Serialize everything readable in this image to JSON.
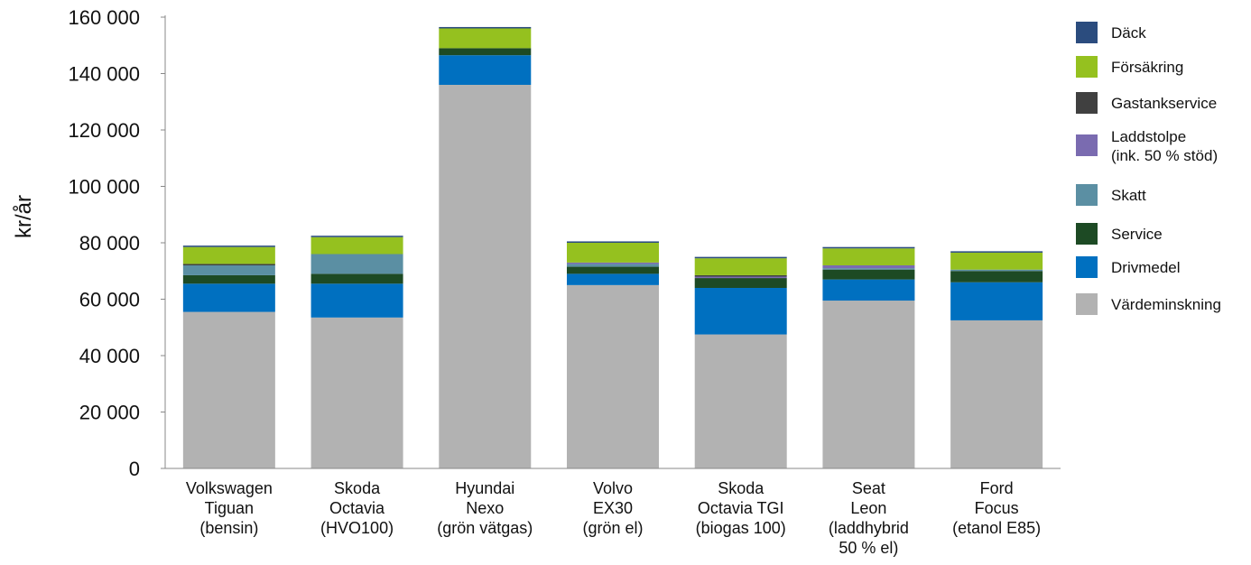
{
  "chart_data": {
    "type": "bar",
    "stacked": true,
    "title": "",
    "xlabel": "",
    "ylabel": "kr/år",
    "ylim": [
      0,
      160000
    ],
    "yticks": [
      0,
      20000,
      40000,
      60000,
      80000,
      100000,
      120000,
      140000,
      160000
    ],
    "ytick_labels": [
      "0",
      "20 000",
      "40 000",
      "60 000",
      "80 000",
      "100 000",
      "120 000",
      "140 000",
      "160 000"
    ],
    "grid": false,
    "legend_position": "right",
    "categories": [
      [
        "Volkswagen",
        "Tiguan",
        "(bensin)"
      ],
      [
        "Skoda",
        "Octavia",
        "(HVO100)"
      ],
      [
        "Hyundai",
        "Nexo",
        "(grön vätgas)"
      ],
      [
        "Volvo",
        "EX30",
        "(grön el)"
      ],
      [
        "Skoda",
        "Octavia TGI",
        "(biogas 100)"
      ],
      [
        "Seat",
        "Leon",
        "(laddhybrid",
        "50 % el)"
      ],
      [
        "Ford",
        "Focus",
        "(etanol E85)"
      ]
    ],
    "series": [
      {
        "name": "Värdeminskning",
        "color": "#b2b2b2",
        "values": [
          55500,
          53500,
          136000,
          65000,
          47500,
          59500,
          52500
        ]
      },
      {
        "name": "Drivmedel",
        "color": "#0070c0",
        "values": [
          10000,
          12000,
          10500,
          4000,
          16500,
          7500,
          13500
        ]
      },
      {
        "name": "Service",
        "color": "#1d4a24",
        "values": [
          3000,
          3500,
          2500,
          2500,
          3500,
          3500,
          4000
        ]
      },
      {
        "name": "Skatt",
        "color": "#5b8fa3",
        "values": [
          3500,
          7000,
          0,
          1000,
          0,
          500,
          500
        ]
      },
      {
        "name": "Laddstolpe",
        "name_line2": "(ink. 50 % stöd)",
        "color": "#7a6bb0",
        "values": [
          0,
          0,
          0,
          500,
          500,
          1000,
          0
        ]
      },
      {
        "name": "Gastankservice",
        "color": "#404040",
        "values": [
          500,
          0,
          0,
          0,
          500,
          0,
          0
        ]
      },
      {
        "name": "Försäkring",
        "color": "#95c11f",
        "values": [
          6000,
          6000,
          7000,
          7000,
          6000,
          6000,
          6000
        ]
      },
      {
        "name": "Däck",
        "color": "#2b4c7e",
        "values": [
          500,
          500,
          500,
          500,
          500,
          500,
          500
        ]
      }
    ],
    "legend_order": [
      "Däck",
      "Försäkring",
      "Gastankservice",
      "Laddstolpe",
      "Skatt",
      "Service",
      "Drivmedel",
      "Värdeminskning"
    ]
  }
}
